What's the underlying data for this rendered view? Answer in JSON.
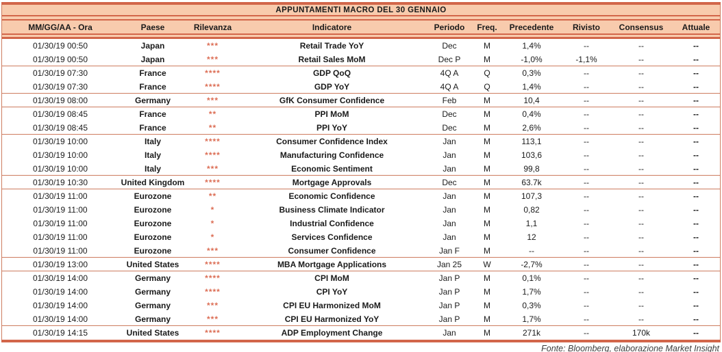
{
  "title": "APPUNTAMENTI MACRO DEL 30 GENNAIO",
  "footer": "Fonte: Bloomberg, elaborazione Market Insight",
  "colors": {
    "peach_background": "#F8CBAD",
    "border_strong": "#D2664A",
    "border_light": "#CD7B5E",
    "star": "#DC6E55",
    "text": "#1A1A1A",
    "footer_text": "#3D3D3D"
  },
  "table": {
    "columns": [
      {
        "key": "datetime",
        "label": "MM/GG/AA - Ora"
      },
      {
        "key": "country",
        "label": "Paese"
      },
      {
        "key": "relevance",
        "label": "Rilevanza"
      },
      {
        "key": "indicator",
        "label": "Indicatore"
      },
      {
        "key": "period",
        "label": "Periodo"
      },
      {
        "key": "freq",
        "label": "Freq."
      },
      {
        "key": "previous",
        "label": "Precedente"
      },
      {
        "key": "revised",
        "label": "Rivisto"
      },
      {
        "key": "consensus",
        "label": "Consensus"
      },
      {
        "key": "actual",
        "label": "Attuale"
      }
    ],
    "rows": [
      {
        "datetime": "01/30/19 00:50",
        "country": "Japan",
        "relevance": "***",
        "indicator": "Retail Trade YoY",
        "period": "Dec",
        "freq": "M",
        "previous": "1,4%",
        "revised": "--",
        "consensus": "--",
        "actual": "--",
        "group_end": false
      },
      {
        "datetime": "01/30/19 00:50",
        "country": "Japan",
        "relevance": "***",
        "indicator": "Retail Sales MoM",
        "period": "Dec P",
        "freq": "M",
        "previous": "-1,0%",
        "revised": "-1,1%",
        "consensus": "--",
        "actual": "--",
        "group_end": true
      },
      {
        "datetime": "01/30/19 07:30",
        "country": "France",
        "relevance": "****",
        "indicator": "GDP QoQ",
        "period": "4Q A",
        "freq": "Q",
        "previous": "0,3%",
        "revised": "--",
        "consensus": "--",
        "actual": "--",
        "group_end": false
      },
      {
        "datetime": "01/30/19 07:30",
        "country": "France",
        "relevance": "****",
        "indicator": "GDP YoY",
        "period": "4Q A",
        "freq": "Q",
        "previous": "1,4%",
        "revised": "--",
        "consensus": "--",
        "actual": "--",
        "group_end": true
      },
      {
        "datetime": "01/30/19 08:00",
        "country": "Germany",
        "relevance": "***",
        "indicator": "GfK Consumer Confidence",
        "period": "Feb",
        "freq": "M",
        "previous": "10,4",
        "revised": "--",
        "consensus": "--",
        "actual": "--",
        "group_end": true
      },
      {
        "datetime": "01/30/19 08:45",
        "country": "France",
        "relevance": "**",
        "indicator": "PPI MoM",
        "period": "Dec",
        "freq": "M",
        "previous": "0,4%",
        "revised": "--",
        "consensus": "--",
        "actual": "--",
        "group_end": false
      },
      {
        "datetime": "01/30/19 08:45",
        "country": "France",
        "relevance": "**",
        "indicator": "PPI YoY",
        "period": "Dec",
        "freq": "M",
        "previous": "2,6%",
        "revised": "--",
        "consensus": "--",
        "actual": "--",
        "group_end": true
      },
      {
        "datetime": "01/30/19 10:00",
        "country": "Italy",
        "relevance": "****",
        "indicator": "Consumer Confidence Index",
        "period": "Jan",
        "freq": "M",
        "previous": "113,1",
        "revised": "--",
        "consensus": "--",
        "actual": "--",
        "group_end": false
      },
      {
        "datetime": "01/30/19 10:00",
        "country": "Italy",
        "relevance": "****",
        "indicator": "Manufacturing Confidence",
        "period": "Jan",
        "freq": "M",
        "previous": "103,6",
        "revised": "--",
        "consensus": "--",
        "actual": "--",
        "group_end": false
      },
      {
        "datetime": "01/30/19 10:00",
        "country": "Italy",
        "relevance": "***",
        "indicator": "Economic Sentiment",
        "period": "Jan",
        "freq": "M",
        "previous": "99,8",
        "revised": "--",
        "consensus": "--",
        "actual": "--",
        "group_end": true
      },
      {
        "datetime": "01/30/19 10:30",
        "country": "United Kingdom",
        "relevance": "****",
        "indicator": "Mortgage Approvals",
        "period": "Dec",
        "freq": "M",
        "previous": "63.7k",
        "revised": "--",
        "consensus": "--",
        "actual": "--",
        "group_end": true
      },
      {
        "datetime": "01/30/19 11:00",
        "country": "Eurozone",
        "relevance": "**",
        "indicator": "Economic Confidence",
        "period": "Jan",
        "freq": "M",
        "previous": "107,3",
        "revised": "--",
        "consensus": "--",
        "actual": "--",
        "group_end": false
      },
      {
        "datetime": "01/30/19 11:00",
        "country": "Eurozone",
        "relevance": "*",
        "indicator": "Business Climate Indicator",
        "period": "Jan",
        "freq": "M",
        "previous": "0,82",
        "revised": "--",
        "consensus": "--",
        "actual": "--",
        "group_end": false
      },
      {
        "datetime": "01/30/19 11:00",
        "country": "Eurozone",
        "relevance": "*",
        "indicator": "Industrial Confidence",
        "period": "Jan",
        "freq": "M",
        "previous": "1,1",
        "revised": "--",
        "consensus": "--",
        "actual": "--",
        "group_end": false
      },
      {
        "datetime": "01/30/19 11:00",
        "country": "Eurozone",
        "relevance": "*",
        "indicator": "Services Confidence",
        "period": "Jan",
        "freq": "M",
        "previous": "12",
        "revised": "--",
        "consensus": "--",
        "actual": "--",
        "group_end": false
      },
      {
        "datetime": "01/30/19 11:00",
        "country": "Eurozone",
        "relevance": "***",
        "indicator": "Consumer Confidence",
        "period": "Jan F",
        "freq": "M",
        "previous": "--",
        "revised": "--",
        "consensus": "--",
        "actual": "--",
        "group_end": true
      },
      {
        "datetime": "01/30/19 13:00",
        "country": "United States",
        "relevance": "****",
        "indicator": "MBA Mortgage Applications",
        "period": "Jan 25",
        "freq": "W",
        "previous": "-2,7%",
        "revised": "--",
        "consensus": "--",
        "actual": "--",
        "group_end": true
      },
      {
        "datetime": "01/30/19 14:00",
        "country": "Germany",
        "relevance": "****",
        "indicator": "CPI MoM",
        "period": "Jan P",
        "freq": "M",
        "previous": "0,1%",
        "revised": "--",
        "consensus": "--",
        "actual": "--",
        "group_end": false
      },
      {
        "datetime": "01/30/19 14:00",
        "country": "Germany",
        "relevance": "****",
        "indicator": "CPI YoY",
        "period": "Jan P",
        "freq": "M",
        "previous": "1,7%",
        "revised": "--",
        "consensus": "--",
        "actual": "--",
        "group_end": false
      },
      {
        "datetime": "01/30/19 14:00",
        "country": "Germany",
        "relevance": "***",
        "indicator": "CPI EU Harmonized MoM",
        "period": "Jan P",
        "freq": "M",
        "previous": "0,3%",
        "revised": "--",
        "consensus": "--",
        "actual": "--",
        "group_end": false
      },
      {
        "datetime": "01/30/19 14:00",
        "country": "Germany",
        "relevance": "***",
        "indicator": "CPI EU Harmonized YoY",
        "period": "Jan P",
        "freq": "M",
        "previous": "1,7%",
        "revised": "--",
        "consensus": "--",
        "actual": "--",
        "group_end": true
      },
      {
        "datetime": "01/30/19 14:15",
        "country": "United States",
        "relevance": "****",
        "indicator": "ADP Employment Change",
        "period": "Jan",
        "freq": "M",
        "previous": "271k",
        "revised": "--",
        "consensus": "170k",
        "actual": "--",
        "group_end": false
      }
    ]
  }
}
